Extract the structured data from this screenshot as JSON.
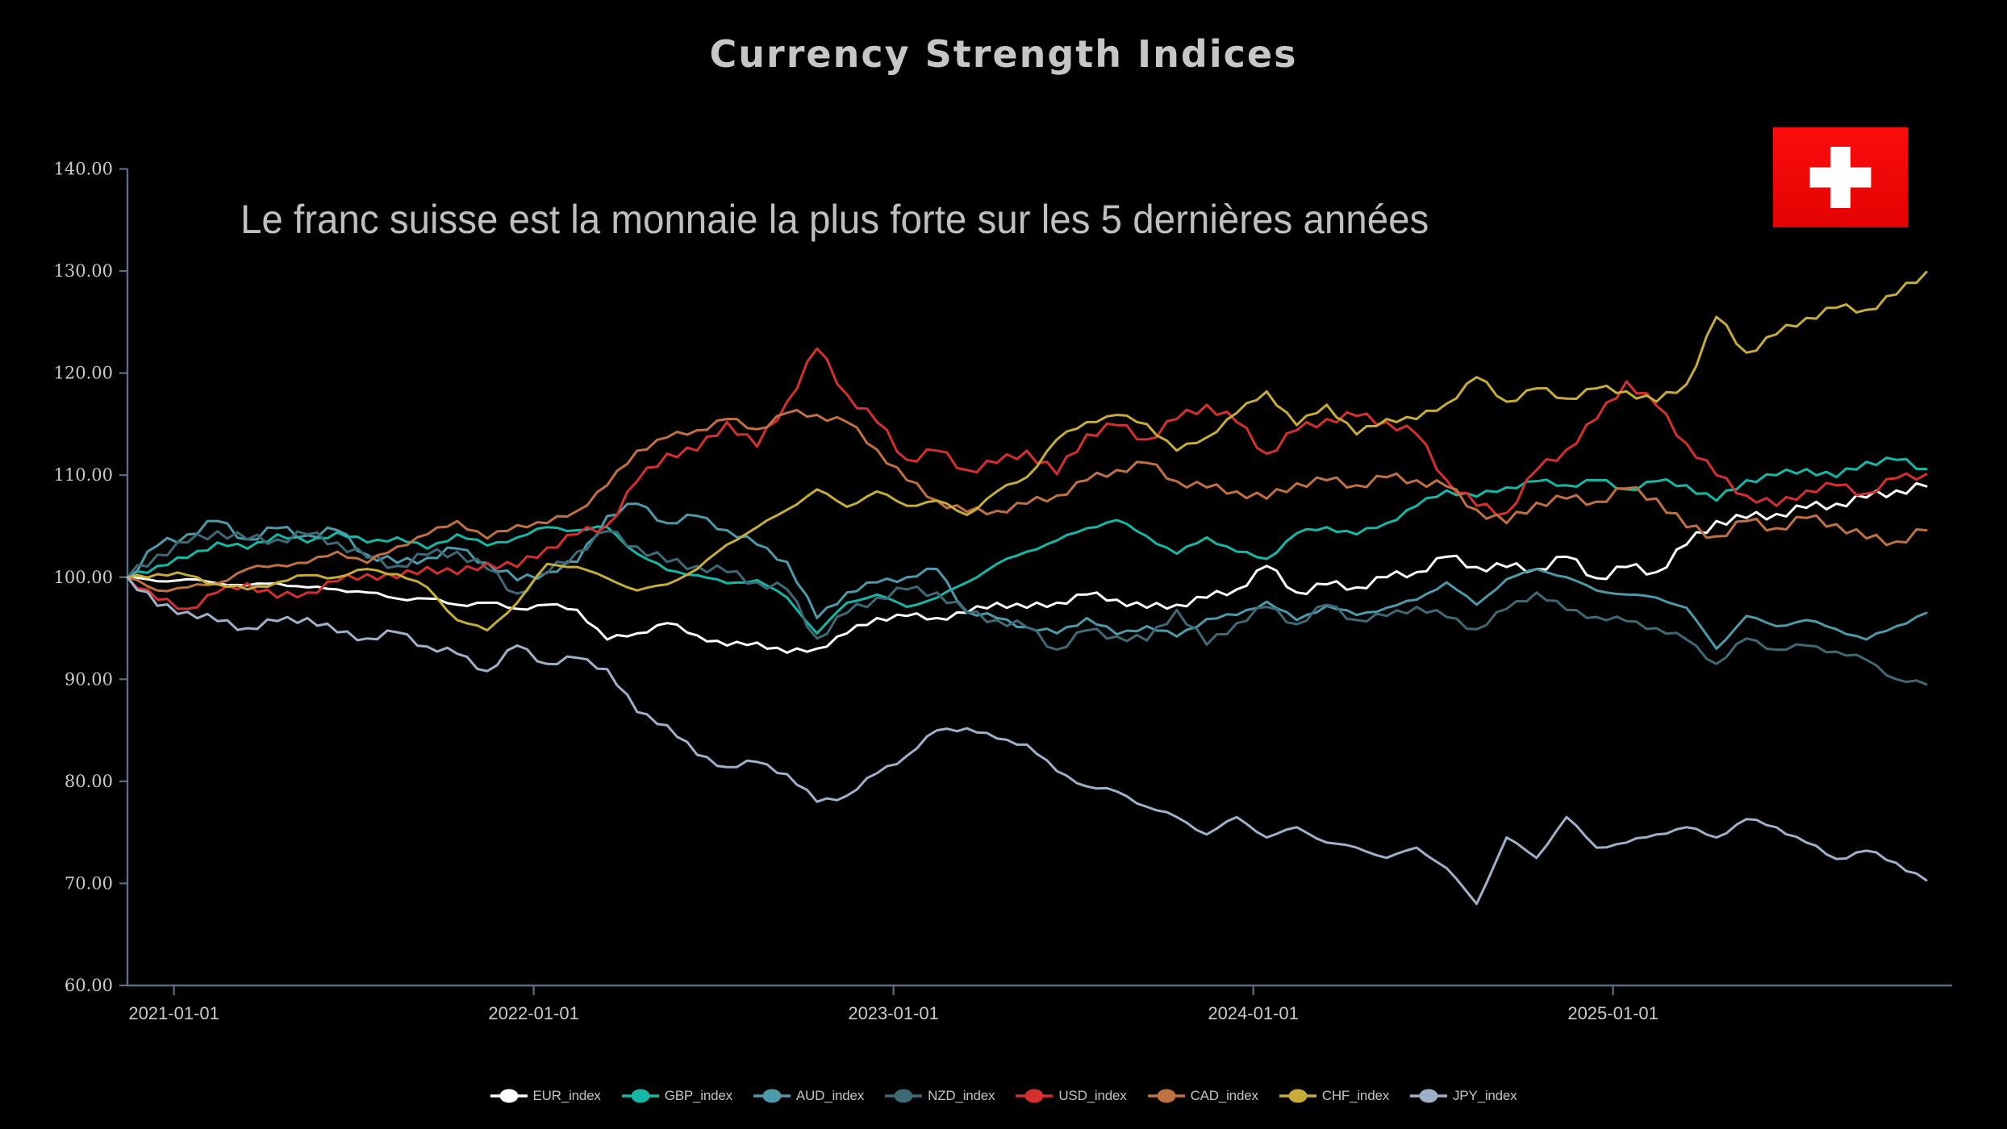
{
  "title": "Currency Strength Indices",
  "annotation": "Le franc suisse est la monnaie la plus forte sur les 5 dernières années",
  "flag": {
    "name": "swiss-flag",
    "red": "#f50a0a",
    "red_dark": "#e00000",
    "cross": "#ffffff"
  },
  "colors": {
    "background": "#000000",
    "axis": "#5d6d85",
    "tick_text": "#cacaca",
    "title_text": "#c6c6c6",
    "annotation_text": "#bfbfbf"
  },
  "chart_data": {
    "type": "line",
    "title": "Currency Strength Indices",
    "annotation": "Le franc suisse est la monnaie la plus forte sur les 5 dernières années",
    "x": {
      "start": "2020-11-15",
      "step_months": 1,
      "count": 61,
      "end": "2025-11-15"
    },
    "x_tick_labels": [
      "2021-01-01",
      "2022-01-01",
      "2023-01-01",
      "2024-01-01",
      "2025-01-01"
    ],
    "y_ticks": [
      "140.00",
      "130.00",
      "120.00",
      "110.00",
      "100.00",
      "90.00",
      "80.00",
      "70.00",
      "60.00"
    ],
    "ylim": [
      60,
      140
    ],
    "xlabel": "",
    "ylabel": "",
    "grid": false,
    "legend_position": "bottom",
    "series": [
      {
        "name": "EUR_index",
        "color": "#ffffff",
        "values": [
          100,
          99.6,
          99.8,
          99.4,
          99.2,
          99.4,
          99.0,
          98.8,
          98.5,
          97.9,
          97.9,
          97.3,
          97.5,
          96.9,
          97.3,
          96.8,
          93.9,
          94.5,
          95.5,
          94.3,
          93.3,
          93.6,
          92.6,
          93.0,
          94.5,
          96.0,
          96.2,
          96.0,
          96.5,
          97.5,
          97.0,
          97.5,
          98.3,
          97.8,
          97.0,
          97.3,
          98.0,
          98.8,
          101.1,
          98.5,
          99.3,
          99.0,
          100.0,
          100.5,
          102.0,
          101.0,
          101.0,
          100.8,
          102.0,
          99.9,
          101.0,
          100.5,
          103.2,
          105.5,
          105.8,
          106.2,
          106.8,
          107.2,
          107.8,
          108.5,
          108.9
        ]
      },
      {
        "name": "GBP_index",
        "color": "#15b8a6",
        "values": [
          100,
          101.1,
          101.9,
          103.4,
          102.8,
          104.2,
          103.4,
          104.4,
          103.4,
          103.9,
          102.8,
          104.2,
          103.1,
          103.9,
          104.9,
          104.6,
          104.9,
          102.3,
          100.7,
          100.2,
          99.4,
          99.7,
          98.0,
          94.5,
          97.5,
          98.3,
          97.1,
          98.0,
          99.5,
          101.3,
          102.5,
          103.6,
          104.8,
          105.6,
          104.0,
          102.3,
          103.9,
          102.5,
          101.8,
          104.3,
          104.9,
          104.2,
          105.3,
          107.0,
          108.5,
          107.9,
          108.8,
          109.4,
          109.0,
          109.5,
          108.6,
          109.4,
          109.0,
          107.5,
          109.5,
          110.0,
          110.6,
          109.8,
          111.3,
          111.5,
          110.6
        ]
      },
      {
        "name": "AUD_index",
        "color": "#4d9aaa",
        "values": [
          100,
          103.1,
          104.2,
          105.5,
          103.7,
          104.8,
          104.1,
          104.6,
          102.2,
          101.4,
          101.9,
          102.8,
          101.4,
          99.7,
          100.5,
          101.5,
          106.0,
          107.2,
          105.3,
          106.0,
          104.6,
          103.2,
          101.5,
          96.0,
          98.5,
          99.5,
          100.0,
          100.8,
          96.6,
          96.0,
          95.1,
          94.5,
          96.0,
          94.4,
          95.2,
          94.2,
          95.9,
          96.3,
          97.6,
          95.8,
          97.2,
          96.3,
          97.0,
          97.8,
          99.5,
          97.3,
          99.8,
          100.8,
          100.0,
          98.7,
          98.3,
          98.0,
          97.0,
          93.0,
          96.2,
          95.2,
          95.8,
          94.9,
          93.9,
          95.2,
          96.5
        ]
      },
      {
        "name": "NZD_index",
        "color": "#3d6a75",
        "values": [
          100,
          102.2,
          103.4,
          104.5,
          103.7,
          103.7,
          104.2,
          103.4,
          101.9,
          101.1,
          102.2,
          102.5,
          100.8,
          98.4,
          100.4,
          102.5,
          104.5,
          103.0,
          101.5,
          101.1,
          100.5,
          99.5,
          98.8,
          94.0,
          96.5,
          98.0,
          98.8,
          98.5,
          96.5,
          95.8,
          95.1,
          92.9,
          94.8,
          94.2,
          93.8,
          96.8,
          93.4,
          95.5,
          97.1,
          95.4,
          97.3,
          95.8,
          96.2,
          97.1,
          96.1,
          94.9,
          96.9,
          98.5,
          96.8,
          96.1,
          95.7,
          95.0,
          93.9,
          91.5,
          94.0,
          92.9,
          93.3,
          92.7,
          91.9,
          90.0,
          89.5
        ]
      },
      {
        "name": "USD_index",
        "color": "#d62f2f",
        "values": [
          100,
          97.8,
          96.9,
          98.5,
          99.4,
          98.0,
          98.5,
          99.6,
          100.3,
          99.9,
          101.0,
          100.3,
          101.4,
          101.0,
          102.9,
          104.2,
          105.1,
          109.4,
          112.1,
          112.4,
          115.2,
          112.8,
          117.2,
          122.4,
          117.9,
          115.2,
          111.5,
          112.4,
          110.5,
          111.2,
          112.4,
          110.1,
          114.0,
          114.9,
          113.5,
          115.5,
          116.9,
          115.2,
          112.1,
          114.4,
          115.5,
          115.8,
          115.2,
          114.0,
          109.5,
          107.0,
          106.3,
          110.5,
          112.5,
          115.5,
          119.2,
          116.8,
          113.1,
          110.0,
          108.0,
          107.0,
          108.5,
          109.0,
          108.2,
          109.7,
          110.1
        ]
      },
      {
        "name": "CAD_index",
        "color": "#c17141",
        "values": [
          100,
          98.7,
          99.0,
          99.4,
          100.8,
          101.2,
          101.4,
          102.5,
          101.4,
          103.0,
          104.2,
          105.5,
          103.8,
          105.1,
          105.3,
          106.5,
          109.0,
          112.4,
          113.7,
          114.4,
          115.5,
          114.5,
          116.1,
          115.9,
          115.2,
          112.5,
          109.5,
          107.5,
          106.4,
          106.5,
          107.2,
          108.0,
          109.5,
          110.5,
          111.2,
          109.4,
          108.8,
          108.4,
          107.7,
          109.2,
          109.5,
          109.0,
          109.8,
          109.5,
          108.9,
          106.6,
          105.3,
          107.3,
          107.7,
          107.4,
          108.7,
          107.7,
          104.9,
          104.0,
          105.5,
          104.8,
          105.8,
          105.2,
          103.8,
          103.5,
          104.6
        ]
      },
      {
        "name": "CHF_index",
        "color": "#c6ad39",
        "values": [
          100,
          100.3,
          100.2,
          99.3,
          98.8,
          99.5,
          100.2,
          100.0,
          100.8,
          100.3,
          99.0,
          95.8,
          94.8,
          97.5,
          101.3,
          101.0,
          99.9,
          98.7,
          99.3,
          100.8,
          103.2,
          104.9,
          106.6,
          108.6,
          106.9,
          108.4,
          107.0,
          107.5,
          106.1,
          108.4,
          109.8,
          113.5,
          115.2,
          115.9,
          115.0,
          112.4,
          113.7,
          116.1,
          118.2,
          114.9,
          116.9,
          114.0,
          115.5,
          115.5,
          117.0,
          119.6,
          117.2,
          118.5,
          117.5,
          118.5,
          118.2,
          117.2,
          118.9,
          125.5,
          122.0,
          123.8,
          125.4,
          126.4,
          126.2,
          127.7,
          129.9
        ]
      },
      {
        "name": "JPY_index",
        "color": "#9db2c9",
        "values": [
          100,
          97.2,
          96.6,
          95.7,
          95.0,
          95.7,
          96.0,
          94.6,
          94.0,
          94.6,
          93.2,
          92.5,
          90.8,
          93.3,
          91.5,
          92.1,
          91.0,
          86.8,
          85.5,
          82.6,
          81.4,
          81.9,
          80.7,
          78.0,
          78.6,
          80.8,
          82.5,
          85.0,
          85.2,
          84.2,
          83.6,
          81.0,
          79.5,
          79.0,
          77.5,
          76.5,
          74.8,
          76.5,
          74.5,
          75.5,
          74.0,
          73.5,
          72.5,
          73.5,
          71.5,
          68.0,
          74.5,
          72.5,
          76.5,
          73.5,
          74.0,
          74.8,
          75.5,
          74.5,
          76.3,
          75.5,
          74.0,
          72.4,
          73.2,
          72.0,
          70.3
        ]
      }
    ]
  }
}
